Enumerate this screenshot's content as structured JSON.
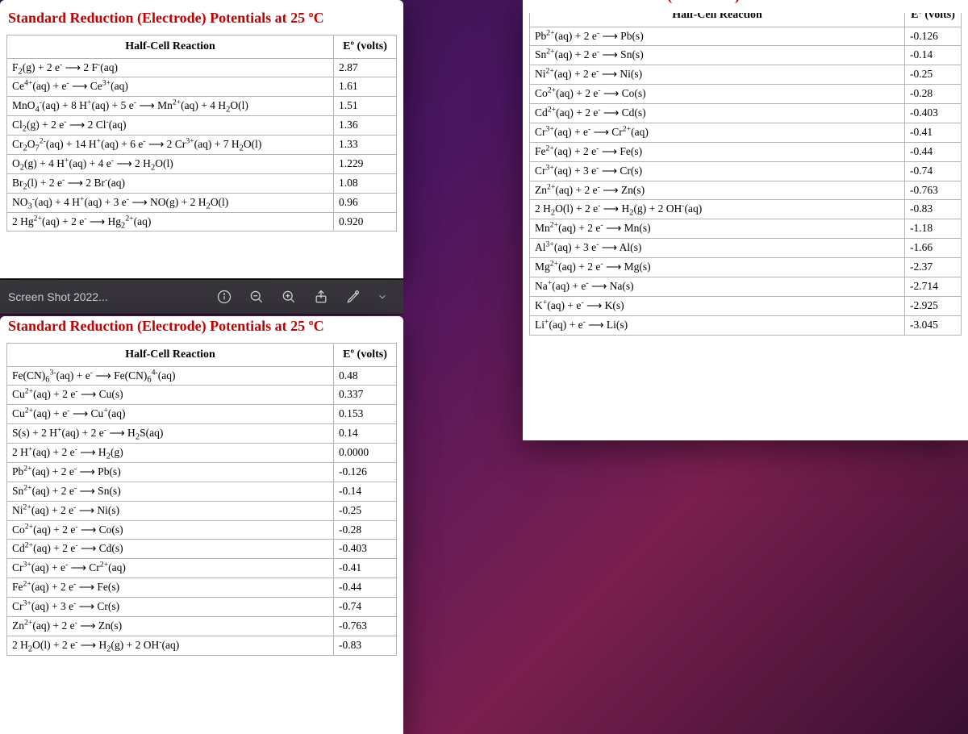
{
  "colors": {
    "title": "#c00000",
    "border": "#b3b3b3",
    "toolbar_bg": "#38343c",
    "toolbar_fg": "#cfcfd4"
  },
  "doc_title": "Standard Reduction (Electrode) Potentials at 25 ºC",
  "columns": {
    "reaction": "Half-Cell Reaction",
    "potential": "Eº (volts)"
  },
  "toolbar": {
    "filename": "Screen Shot 2022...",
    "icons": [
      "info-icon",
      "zoom-out-icon",
      "zoom-in-icon",
      "share-icon",
      "markup-icon",
      "chevron-down-icon"
    ]
  },
  "table_top_left": [
    {
      "r": "F<sub>2</sub>(g) + 2 e<sup>-</sup> ⟶ 2 F<sup>-</sup>(aq)",
      "e": "2.87"
    },
    {
      "r": "Ce<sup>4+</sup>(aq) + e<sup>-</sup> ⟶ Ce<sup>3+</sup>(aq)",
      "e": "1.61"
    },
    {
      "r": "MnO<sub>4</sub><sup>-</sup>(aq) + 8 H<sup>+</sup>(aq) + 5 e<sup>-</sup> ⟶ Mn<sup>2+</sup>(aq) + 4 H<sub>2</sub>O(l)",
      "e": "1.51"
    },
    {
      "r": "Cl<sub>2</sub>(g) + 2 e<sup>-</sup> ⟶ 2 Cl<sup>-</sup>(aq)",
      "e": "1.36"
    },
    {
      "r": "Cr<sub>2</sub>O<sub>7</sub><sup>2-</sup>(aq) + 14 H<sup>+</sup>(aq) + 6 e<sup>-</sup> ⟶ 2 Cr<sup>3+</sup>(aq) + 7 H<sub>2</sub>O(l)",
      "e": "1.33"
    },
    {
      "r": "O<sub>2</sub>(g) + 4 H<sup>+</sup>(aq) + 4 e<sup>-</sup> ⟶ 2 H<sub>2</sub>O(l)",
      "e": "1.229"
    },
    {
      "r": "Br<sub>2</sub>(l) + 2 e<sup>-</sup> ⟶ 2 Br<sup>-</sup>(aq)",
      "e": "1.08"
    },
    {
      "r": "NO<sub>3</sub><sup>-</sup>(aq) + 4 H<sup>+</sup>(aq) + 3 e<sup>-</sup> ⟶ NO(g) + 2 H<sub>2</sub>O(l)",
      "e": "0.96"
    },
    {
      "r": "2 Hg<sup>2+</sup>(aq) + 2 e<sup>-</sup> ⟶ Hg<sub>2</sub><sup>2+</sup>(aq)",
      "e": "0.920"
    }
  ],
  "table_bottom_left": [
    {
      "r": "Fe(CN)<sub>6</sub><sup>3-</sup>(aq) + e<sup>-</sup> ⟶ Fe(CN)<sub>6</sub><sup>4-</sup>(aq)",
      "e": "0.48"
    },
    {
      "r": "Cu<sup>2+</sup>(aq) + 2 e<sup>-</sup> ⟶ Cu(s)",
      "e": "0.337"
    },
    {
      "r": "Cu<sup>2+</sup>(aq) + e<sup>-</sup> ⟶ Cu<sup>+</sup>(aq)",
      "e": "0.153"
    },
    {
      "r": "S(s) + 2 H<sup>+</sup>(aq) + 2 e<sup>-</sup> ⟶ H<sub>2</sub>S(aq)",
      "e": "0.14"
    },
    {
      "r": "2 H<sup>+</sup>(aq) + 2 e<sup>-</sup> ⟶ H<sub>2</sub>(g)",
      "e": "0.0000"
    },
    {
      "r": "Pb<sup>2+</sup>(aq) + 2 e<sup>-</sup> ⟶ Pb(s)",
      "e": "-0.126"
    },
    {
      "r": "Sn<sup>2+</sup>(aq) + 2 e<sup>-</sup> ⟶ Sn(s)",
      "e": "-0.14"
    },
    {
      "r": "Ni<sup>2+</sup>(aq) + 2 e<sup>-</sup> ⟶ Ni(s)",
      "e": "-0.25"
    },
    {
      "r": "Co<sup>2+</sup>(aq) + 2 e<sup>-</sup> ⟶ Co(s)",
      "e": "-0.28"
    },
    {
      "r": "Cd<sup>2+</sup>(aq) + 2 e<sup>-</sup> ⟶ Cd(s)",
      "e": "-0.403"
    },
    {
      "r": "Cr<sup>3+</sup>(aq) + e<sup>-</sup> ⟶ Cr<sup>2+</sup>(aq)",
      "e": "-0.41"
    },
    {
      "r": "Fe<sup>2+</sup>(aq) + 2 e<sup>-</sup> ⟶ Fe(s)",
      "e": "-0.44"
    },
    {
      "r": "Cr<sup>3+</sup>(aq) + 3 e<sup>-</sup> ⟶ Cr(s)",
      "e": "-0.74"
    },
    {
      "r": "Zn<sup>2+</sup>(aq) + 2 e<sup>-</sup> ⟶ Zn(s)",
      "e": "-0.763"
    },
    {
      "r": "2 H<sub>2</sub>O(l) + 2 e<sup>-</sup> ⟶ H<sub>2</sub>(g) + 2 OH<sup>-</sup>(aq)",
      "e": "-0.83"
    }
  ],
  "table_right": [
    {
      "r": "Pb<sup>2+</sup>(aq) + 2 e<sup>-</sup> ⟶ Pb(s)",
      "e": "-0.126"
    },
    {
      "r": "Sn<sup>2+</sup>(aq) + 2 e<sup>-</sup> ⟶ Sn(s)",
      "e": "-0.14"
    },
    {
      "r": "Ni<sup>2+</sup>(aq) + 2 e<sup>-</sup> ⟶ Ni(s)",
      "e": "-0.25"
    },
    {
      "r": "Co<sup>2+</sup>(aq) + 2 e<sup>-</sup> ⟶ Co(s)",
      "e": "-0.28"
    },
    {
      "r": "Cd<sup>2+</sup>(aq) + 2 e<sup>-</sup> ⟶ Cd(s)",
      "e": "-0.403"
    },
    {
      "r": "Cr<sup>3+</sup>(aq) + e<sup>-</sup> ⟶ Cr<sup>2+</sup>(aq)",
      "e": "-0.41"
    },
    {
      "r": "Fe<sup>2+</sup>(aq) + 2 e<sup>-</sup> ⟶ Fe(s)",
      "e": "-0.44"
    },
    {
      "r": "Cr<sup>3+</sup>(aq) + 3 e<sup>-</sup> ⟶ Cr(s)",
      "e": "-0.74"
    },
    {
      "r": "Zn<sup>2+</sup>(aq) + 2 e<sup>-</sup> ⟶ Zn(s)",
      "e": "-0.763"
    },
    {
      "r": "2 H<sub>2</sub>O(l) + 2 e<sup>-</sup> ⟶ H<sub>2</sub>(g) + 2 OH<sup>-</sup>(aq)",
      "e": "-0.83"
    },
    {
      "r": "Mn<sup>2+</sup>(aq) + 2 e<sup>-</sup> ⟶ Mn(s)",
      "e": "-1.18"
    },
    {
      "r": "Al<sup>3+</sup>(aq) + 3 e<sup>-</sup> ⟶ Al(s)",
      "e": "-1.66"
    },
    {
      "r": "Mg<sup>2+</sup>(aq) + 2 e<sup>-</sup> ⟶ Mg(s)",
      "e": "-2.37"
    },
    {
      "r": "Na<sup>+</sup>(aq) + e<sup>-</sup> ⟶ Na(s)",
      "e": "-2.714"
    },
    {
      "r": "K<sup>+</sup>(aq) + e<sup>-</sup> ⟶ K(s)",
      "e": "-2.925"
    },
    {
      "r": "Li<sup>+</sup>(aq) + e<sup>-</sup> ⟶ Li(s)",
      "e": "-3.045"
    }
  ]
}
